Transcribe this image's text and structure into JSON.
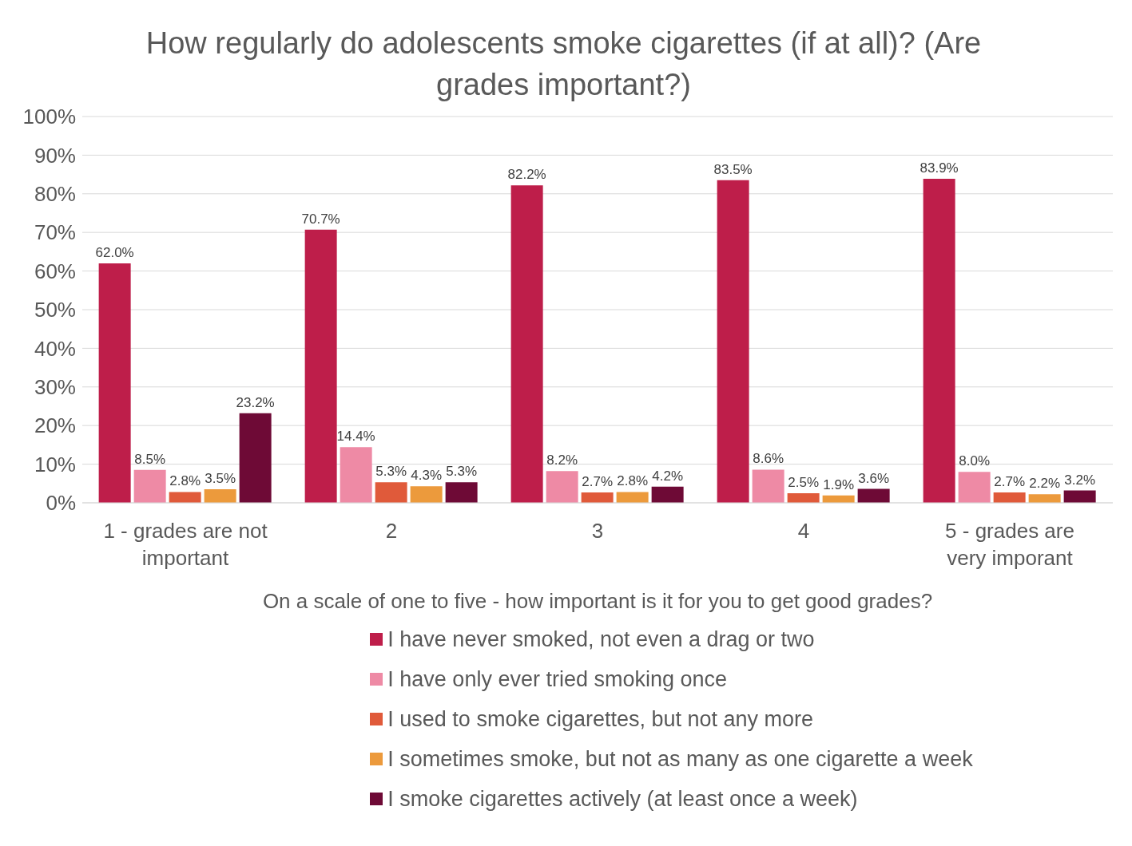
{
  "chart_data": {
    "type": "bar",
    "title": "How regularly do adolescents smoke cigarettes (if at all)? (Are grades important?)",
    "xlabel": "On a scale of one to five - how important is it for you to get good grades?",
    "categories": [
      "1 - grades are not important",
      "2",
      "3",
      "4",
      "5 - grades are very imporant"
    ],
    "series": [
      {
        "name": "I have never smoked, not even a drag or two",
        "color": "#be1e4a",
        "values": [
          62.0,
          70.7,
          82.2,
          83.5,
          83.9
        ],
        "value_labels": [
          "62.0%",
          "70.7%",
          "82.2%",
          "83.5%",
          "83.9%"
        ]
      },
      {
        "name": "I have only ever tried smoking once",
        "color": "#ee8aa5",
        "values": [
          8.5,
          14.4,
          8.2,
          8.6,
          8.0
        ],
        "value_labels": [
          "8.5%",
          "14.4%",
          "8.2%",
          "8.6%",
          "8.0%"
        ]
      },
      {
        "name": "I used to smoke cigarettes, but not any more",
        "color": "#e05a3a",
        "values": [
          2.8,
          5.3,
          2.7,
          2.5,
          2.7
        ],
        "value_labels": [
          "2.8%",
          "5.3%",
          "2.7%",
          "2.5%",
          "2.7%"
        ]
      },
      {
        "name": "I sometimes smoke, but not as many as one cigarette a week",
        "color": "#ec9a3c",
        "values": [
          3.5,
          4.3,
          2.8,
          1.9,
          2.2
        ],
        "value_labels": [
          "3.5%",
          "4.3%",
          "2.8%",
          "1.9%",
          "2.2%"
        ]
      },
      {
        "name": "I smoke cigarettes actively (at least once a week)",
        "color": "#6e0a36",
        "values": [
          23.2,
          5.3,
          4.2,
          3.6,
          3.2
        ],
        "value_labels": [
          "23.2%",
          "5.3%",
          "4.2%",
          "3.6%",
          "3.2%"
        ]
      }
    ],
    "ylim": [
      0,
      100
    ],
    "yticks": [
      {
        "value": 0,
        "label": "0%"
      },
      {
        "value": 10,
        "label": "10%"
      },
      {
        "value": 20,
        "label": "20%"
      },
      {
        "value": 30,
        "label": "30%"
      },
      {
        "value": 40,
        "label": "40%"
      },
      {
        "value": 50,
        "label": "50%"
      },
      {
        "value": 60,
        "label": "60%"
      },
      {
        "value": 70,
        "label": "70%"
      },
      {
        "value": 80,
        "label": "80%"
      },
      {
        "value": 90,
        "label": "90%"
      },
      {
        "value": 100,
        "label": "100%"
      }
    ],
    "grid": "y",
    "legend": "bottom"
  }
}
